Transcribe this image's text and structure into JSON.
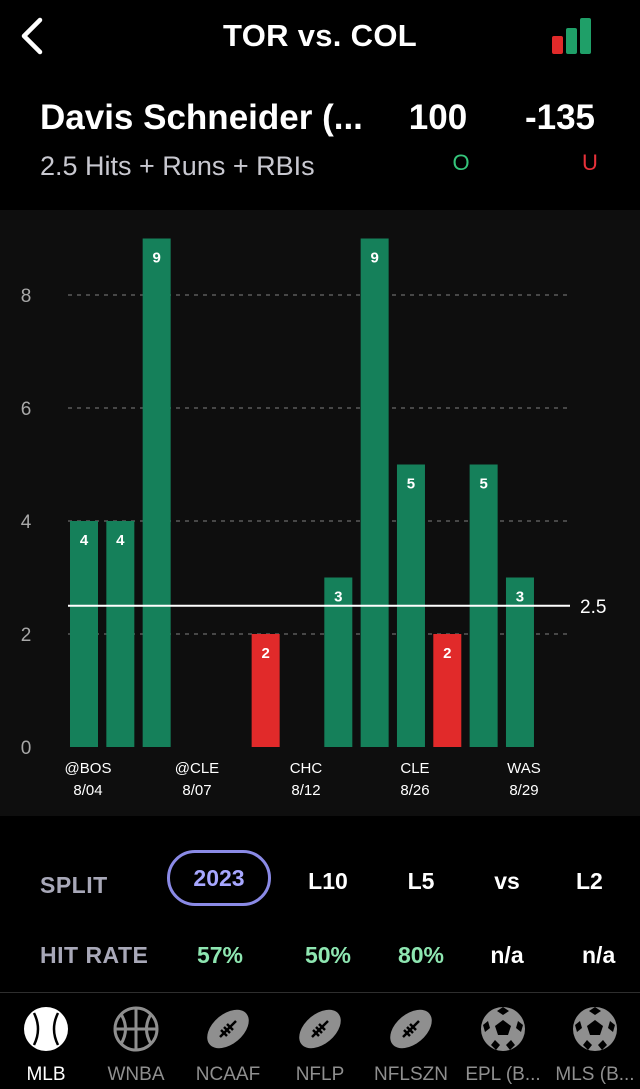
{
  "header": {
    "title": "TOR vs. COL"
  },
  "prop": {
    "player": "Davis Schneider (...",
    "line_label": "2.5 Hits + Runs + RBIs",
    "over_odds": "100",
    "under_odds": "-135",
    "over_label": "O",
    "under_label": "U"
  },
  "colors": {
    "over": "#15805a",
    "under": "#e12a2a",
    "accent": "#8a8ae6",
    "hit_rate": "#8ee6b1"
  },
  "chart_data": {
    "type": "bar",
    "title": "",
    "xlabel": "",
    "ylabel": "",
    "ylim": [
      0,
      9
    ],
    "yticks": [
      0,
      2,
      4,
      6,
      8
    ],
    "line": 2.5,
    "line_label": "2.5",
    "values": [
      4,
      4,
      9,
      0,
      0,
      2,
      0,
      3,
      9,
      5,
      2,
      5,
      3
    ],
    "value_labels": [
      "4",
      "4",
      "9",
      "",
      "",
      "2",
      "",
      "3",
      "9",
      "5",
      "2",
      "5",
      "3"
    ],
    "x_tick_labels": [
      {
        "index": 0,
        "opponent": "@BOS",
        "date": "8/04"
      },
      {
        "index": 3,
        "opponent": "@CLE",
        "date": "8/07"
      },
      {
        "index": 6,
        "opponent": "CHC",
        "date": "8/12"
      },
      {
        "index": 9,
        "opponent": "CLE",
        "date": "8/26"
      },
      {
        "index": 12,
        "opponent": "WAS",
        "date": "8/29"
      }
    ]
  },
  "splits": {
    "label": "SPLIT",
    "items": [
      "2023",
      "L10",
      "L5",
      "vs",
      "L2"
    ],
    "selected": 0
  },
  "hit_rate": {
    "label": "HIT RATE",
    "values": [
      "57%",
      "50%",
      "80%",
      "n/a",
      "n/a"
    ]
  },
  "nav": {
    "items": [
      {
        "label": "MLB",
        "icon": "baseball-icon",
        "active": true
      },
      {
        "label": "WNBA",
        "icon": "basketball-icon",
        "active": false
      },
      {
        "label": "NCAAF",
        "icon": "football-icon",
        "active": false
      },
      {
        "label": "NFLP",
        "icon": "football-icon",
        "active": false
      },
      {
        "label": "NFLSZN",
        "icon": "football-icon",
        "active": false
      },
      {
        "label": "EPL (B...",
        "icon": "soccer-ball-icon",
        "active": false
      },
      {
        "label": "MLS (B...",
        "icon": "soccer-ball-icon",
        "active": false
      }
    ]
  }
}
